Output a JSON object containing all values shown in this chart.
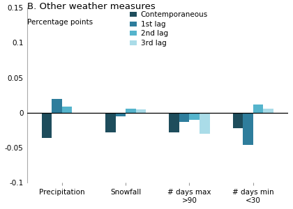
{
  "title": "B. Other weather measures",
  "ylabel": "Percentage points",
  "categories": [
    "Precipitation",
    "Snowfall",
    "# days max\n>90",
    "# days min\n<30"
  ],
  "series": [
    {
      "label": "Contemporaneous",
      "color": "#1e4d5c",
      "values": [
        -0.036,
        -0.028,
        -0.028,
        -0.022
      ]
    },
    {
      "label": "1st lag",
      "color": "#2e7d9c",
      "values": [
        0.02,
        -0.005,
        -0.013,
        -0.046
      ]
    },
    {
      "label": "2nd lag",
      "color": "#55b4cc",
      "values": [
        0.009,
        0.006,
        -0.01,
        0.012
      ]
    },
    {
      "label": "3rd lag",
      "color": "#aadce8",
      "values": [
        -0.001,
        0.005,
        -0.03,
        0.006
      ]
    }
  ],
  "ylim": [
    -0.1,
    0.15
  ],
  "yticks": [
    -0.1,
    -0.05,
    0.0,
    0.05,
    0.1,
    0.15
  ],
  "ytick_labels": [
    "-0.1",
    "-0.05",
    "0",
    "0.05",
    "0.1",
    "0.15"
  ],
  "bar_width": 0.16,
  "legend_fontsize": 7.5,
  "tick_fontsize": 7.5,
  "title_fontsize": 9.5,
  "ylabel_fontsize": 7.5,
  "xtick_fontsize": 7.5
}
